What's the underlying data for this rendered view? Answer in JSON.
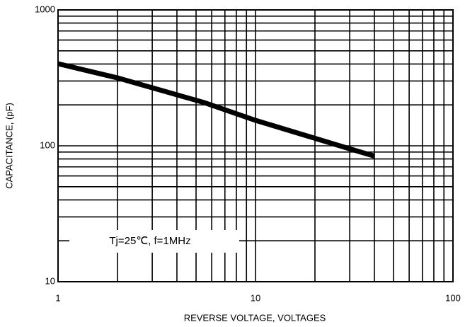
{
  "chart_data": {
    "type": "line",
    "x_label": "REVERSE VOLTAGE, VOLTAGES",
    "y_label": "CAPACITANCE, (pF)",
    "annotation": "Tj=25℃, f=1MHz",
    "x": [
      1,
      2,
      5.5,
      10,
      30,
      40
    ],
    "series": [
      {
        "color": "#000000",
        "values": [
          402,
          316,
          208,
          154,
          95,
          84
        ]
      }
    ],
    "xscale": "log",
    "yscale": "log",
    "xlim": [
      1,
      100
    ],
    "ylim": [
      10,
      1000
    ],
    "xticks": [
      1,
      10,
      100
    ],
    "yticks": [
      10,
      100,
      1000
    ],
    "xminor": [
      2,
      3,
      4,
      5,
      6,
      7,
      8,
      9,
      20,
      30,
      40,
      50,
      60,
      70,
      80,
      90
    ],
    "yminor": [
      20,
      30,
      40,
      50,
      60,
      70,
      80,
      90,
      200,
      300,
      400,
      500,
      600,
      700,
      800,
      900
    ],
    "grid": true
  }
}
